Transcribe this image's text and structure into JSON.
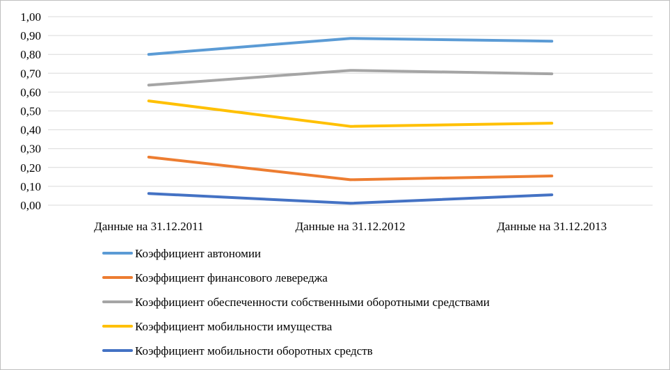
{
  "chart_data": {
    "type": "line",
    "title": "",
    "xlabel": "",
    "ylabel": "",
    "categories": [
      "Данные на 31.12.2011",
      "Данные на 31.12.2012",
      "Данные на 31.12.2013"
    ],
    "ylim": [
      0,
      1
    ],
    "yticks": [
      "0,00",
      "0,10",
      "0,20",
      "0,30",
      "0,40",
      "0,50",
      "0,60",
      "0,70",
      "0,80",
      "0,90",
      "1,00"
    ],
    "grid": true,
    "legend_position": "bottom",
    "series": [
      {
        "name": "Коэффициент автономии",
        "color": "#5b9bd5",
        "values": [
          0.8,
          0.885,
          0.87
        ]
      },
      {
        "name": "Коэффициент финансового левереджа",
        "color": "#ed7d31",
        "values": [
          0.255,
          0.135,
          0.155
        ]
      },
      {
        "name": "Коэффициент обеспеченности собственными оборотными средствами",
        "color": "#a5a5a5",
        "values": [
          0.637,
          0.715,
          0.697
        ]
      },
      {
        "name": "Коэффициент мобильности имущества",
        "color": "#ffc000",
        "values": [
          0.553,
          0.418,
          0.435
        ]
      },
      {
        "name": "Коэффициент мобильности оборотных средств",
        "color": "#4472c4",
        "values": [
          0.062,
          0.01,
          0.055
        ]
      }
    ]
  }
}
